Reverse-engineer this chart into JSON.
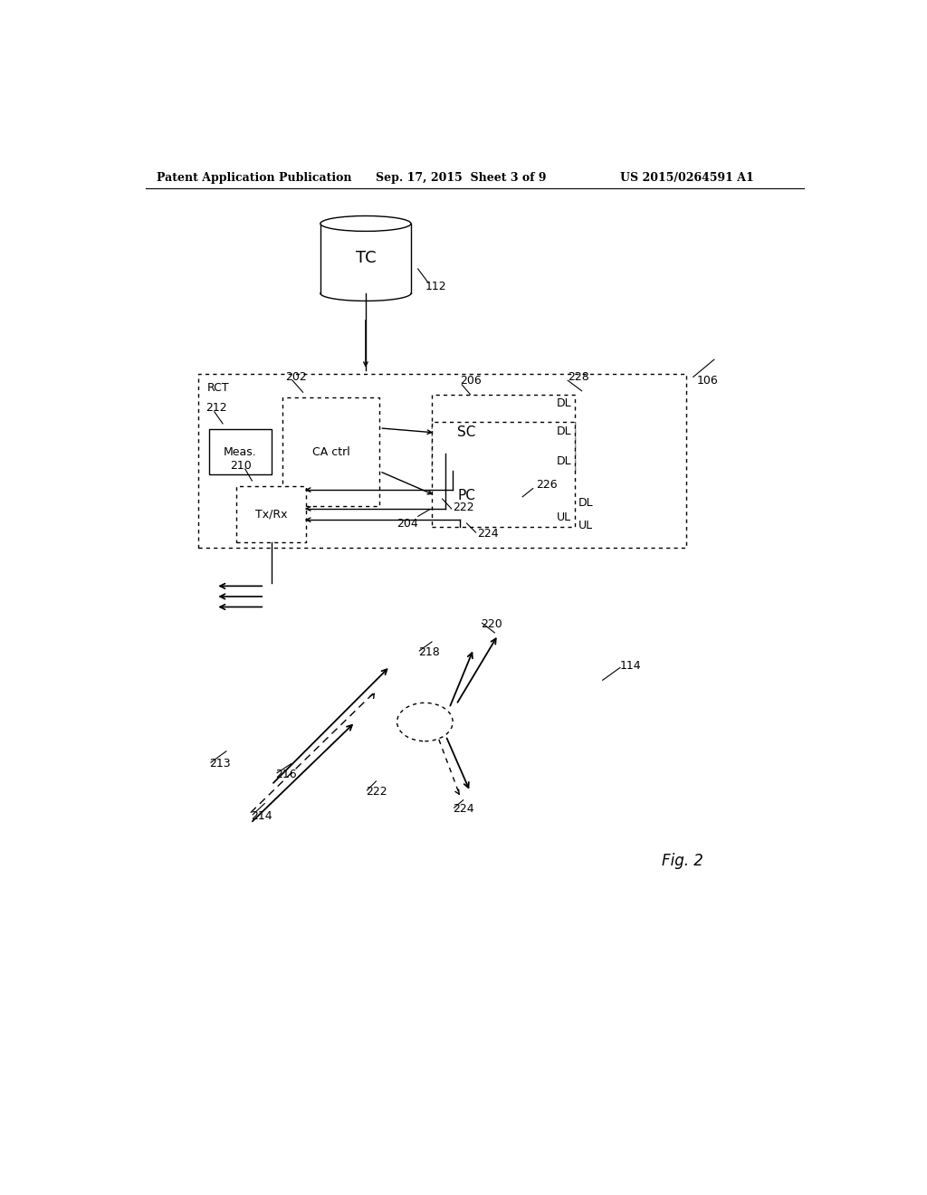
{
  "bg_color": "#ffffff",
  "header_left": "Patent Application Publication",
  "header_mid": "Sep. 17, 2015  Sheet 3 of 9",
  "header_right": "US 2015/0264591 A1",
  "fig_label": "Fig. 2"
}
